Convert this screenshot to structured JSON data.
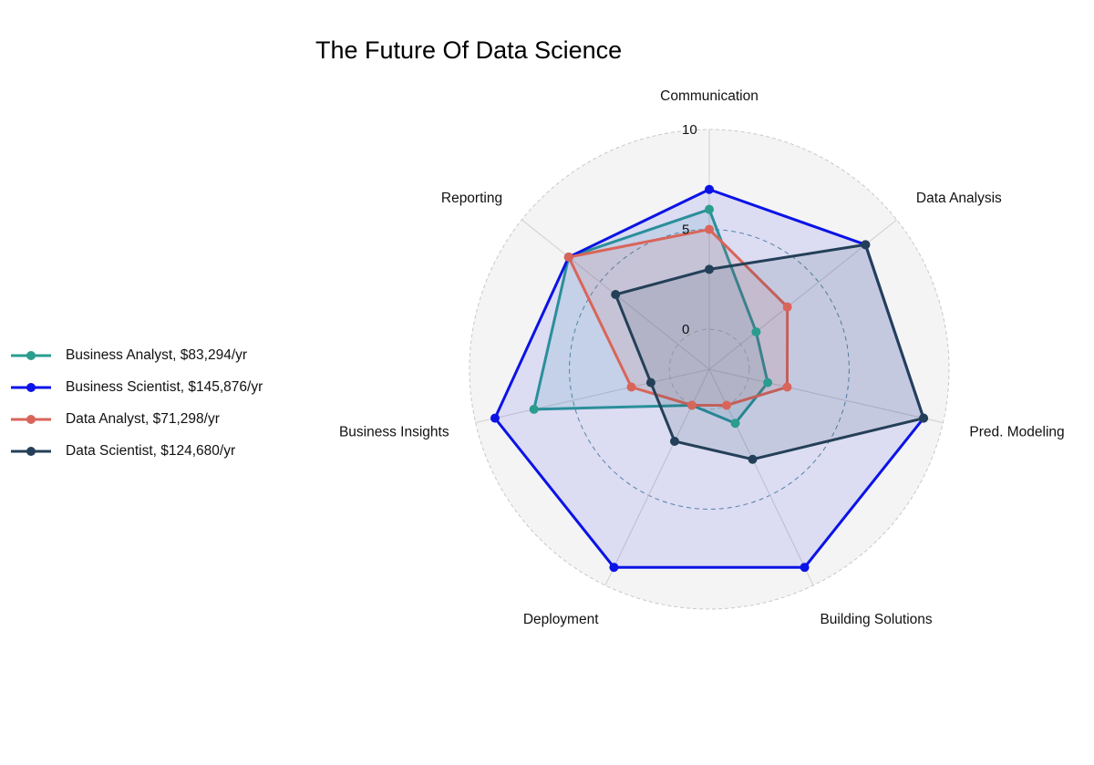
{
  "chart_data": {
    "type": "radar",
    "title": "The Future Of Data Science",
    "axes": [
      "Communication",
      "Data Analysis",
      "Pred. Modeling",
      "Building Solutions",
      "Deployment",
      "Business Insights",
      "Reporting"
    ],
    "rlim": [
      -2,
      10
    ],
    "ticks": [
      "10",
      "5",
      "0"
    ],
    "tick_values": [
      10,
      5,
      0
    ],
    "legend_position": "left",
    "series": [
      {
        "name": "Business Analyst, $83,294/yr",
        "color": "#2a9d8f",
        "fill": "rgba(42,157,143,0.13)",
        "values": [
          6,
          1,
          1,
          1,
          0,
          7,
          7
        ]
      },
      {
        "name": "Business Scientist, $145,876/yr",
        "color": "#0b13e6",
        "fill": "rgba(50,50,240,0.12)",
        "values": [
          7,
          8,
          9,
          9,
          9,
          9,
          7
        ]
      },
      {
        "name": "Data Analyst, $71,298/yr",
        "color": "#d9655a",
        "fill": "rgba(217,101,90,0.13)",
        "values": [
          5,
          3,
          2,
          0,
          0,
          2,
          7
        ]
      },
      {
        "name": "Data Scientist, $124,680/yr",
        "color": "#244058",
        "fill": "rgba(36,64,88,0.12)",
        "values": [
          3,
          8,
          9,
          3,
          2,
          1,
          4
        ]
      }
    ]
  }
}
